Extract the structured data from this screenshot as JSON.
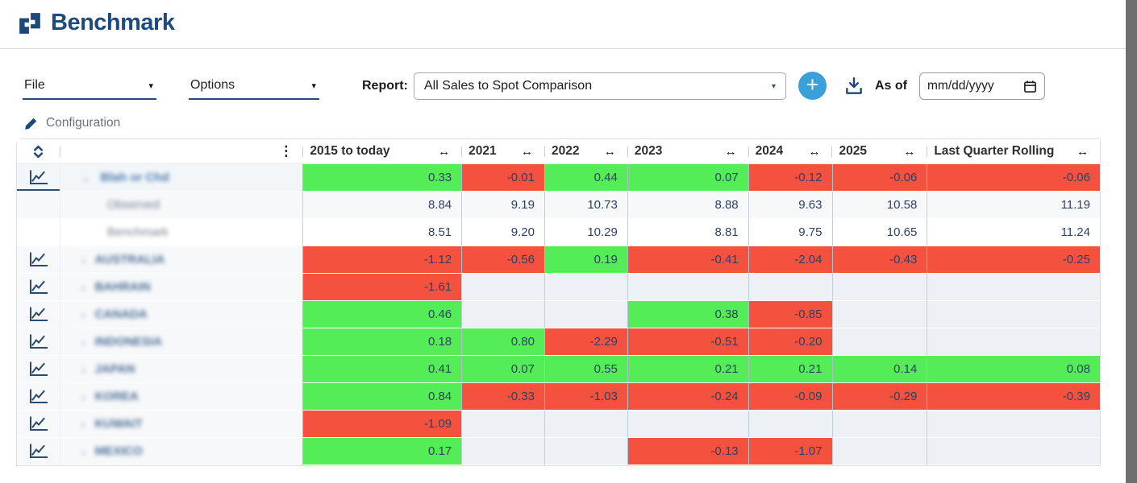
{
  "app": {
    "title": "Benchmark"
  },
  "icons": {
    "caret": "▾",
    "resize": "↔",
    "kebab": "⋮",
    "plus": "+",
    "logo": "puzzle-brackets",
    "sort": "up-down-chevrons",
    "row_chart": "line-chart",
    "config": "pencil",
    "download": "tray-down-arrow",
    "calendar": "calendar"
  },
  "colors": {
    "positive": "#55ed57",
    "negative": "#f4513e",
    "accent_navy": "#1d4879",
    "plus_button_blue": "#39a0da",
    "edge_strip_gray": "#6e6e6e"
  },
  "toolbar": {
    "file_label": "File",
    "options_label": "Options",
    "report_label": "Report:",
    "report_value": "All Sales to Spot Comparison",
    "as_of_label": "As of",
    "date_placeholder": "mm/dd/yyyy"
  },
  "config_link": {
    "label": "Configuration"
  },
  "table": {
    "columns": [
      {
        "label": "2015 to today"
      },
      {
        "label": "2021"
      },
      {
        "label": "2022"
      },
      {
        "label": "2023"
      },
      {
        "label": "2024"
      },
      {
        "label": "2025"
      },
      {
        "label": "Last Quarter Rolling"
      }
    ],
    "rows": [
      {
        "name": "Blah or Chd",
        "blurred": true,
        "chevron": "⌄",
        "icon": true,
        "indent": 1,
        "tone": "parent",
        "cells": [
          {
            "v": "0.33",
            "s": "pos"
          },
          {
            "v": "-0.01",
            "s": "neg"
          },
          {
            "v": "0.44",
            "s": "pos"
          },
          {
            "v": "0.07",
            "s": "pos"
          },
          {
            "v": "-0.12",
            "s": "neg"
          },
          {
            "v": "-0.06",
            "s": "neg"
          },
          {
            "v": "-0.06",
            "s": "neg"
          }
        ]
      },
      {
        "name": "Observed",
        "blurred": true,
        "chevron": "",
        "icon": false,
        "indent": 2,
        "tone": "sub-gray",
        "cells": [
          {
            "v": "8.84",
            "s": "plain"
          },
          {
            "v": "9.19",
            "s": "plain"
          },
          {
            "v": "10.73",
            "s": "plain"
          },
          {
            "v": "8.88",
            "s": "plain"
          },
          {
            "v": "9.63",
            "s": "plain"
          },
          {
            "v": "10.58",
            "s": "plain"
          },
          {
            "v": "11.19",
            "s": "plain"
          }
        ]
      },
      {
        "name": "Benchmark",
        "blurred": true,
        "chevron": "",
        "icon": false,
        "indent": 2,
        "tone": "sub-white",
        "cells": [
          {
            "v": "8.51",
            "s": "plain"
          },
          {
            "v": "9.20",
            "s": "plain"
          },
          {
            "v": "10.29",
            "s": "plain"
          },
          {
            "v": "8.81",
            "s": "plain"
          },
          {
            "v": "9.75",
            "s": "plain"
          },
          {
            "v": "10.65",
            "s": "plain"
          },
          {
            "v": "11.24",
            "s": "plain"
          }
        ]
      },
      {
        "name": "AUSTRALIA",
        "blurred": true,
        "chevron": "›",
        "icon": true,
        "indent": 1,
        "tone": "country",
        "cells": [
          {
            "v": "-1.12",
            "s": "neg"
          },
          {
            "v": "-0.56",
            "s": "neg"
          },
          {
            "v": "0.19",
            "s": "pos"
          },
          {
            "v": "-0.41",
            "s": "neg"
          },
          {
            "v": "-2.04",
            "s": "neg"
          },
          {
            "v": "-0.43",
            "s": "neg"
          },
          {
            "v": "-0.25",
            "s": "neg"
          }
        ]
      },
      {
        "name": "BAHRAIN",
        "blurred": true,
        "chevron": "›",
        "icon": true,
        "indent": 1,
        "tone": "country",
        "cells": [
          {
            "v": "-1.61",
            "s": "neg"
          },
          {
            "v": "",
            "s": "empty"
          },
          {
            "v": "",
            "s": "empty"
          },
          {
            "v": "",
            "s": "empty"
          },
          {
            "v": "",
            "s": "empty"
          },
          {
            "v": "",
            "s": "empty"
          },
          {
            "v": "",
            "s": "empty"
          }
        ]
      },
      {
        "name": "CANADA",
        "blurred": true,
        "chevron": "›",
        "icon": true,
        "indent": 1,
        "tone": "country",
        "cells": [
          {
            "v": "0.46",
            "s": "pos"
          },
          {
            "v": "",
            "s": "empty"
          },
          {
            "v": "",
            "s": "empty"
          },
          {
            "v": "0.38",
            "s": "pos"
          },
          {
            "v": "-0.85",
            "s": "neg"
          },
          {
            "v": "",
            "s": "empty"
          },
          {
            "v": "",
            "s": "empty"
          }
        ]
      },
      {
        "name": "INDONESIA",
        "blurred": true,
        "chevron": "›",
        "icon": true,
        "indent": 1,
        "tone": "country",
        "cells": [
          {
            "v": "0.18",
            "s": "pos"
          },
          {
            "v": "0.80",
            "s": "pos"
          },
          {
            "v": "-2.29",
            "s": "neg"
          },
          {
            "v": "-0.51",
            "s": "neg"
          },
          {
            "v": "-0.20",
            "s": "neg"
          },
          {
            "v": "",
            "s": "empty"
          },
          {
            "v": "",
            "s": "empty"
          }
        ]
      },
      {
        "name": "JAPAN",
        "blurred": true,
        "chevron": "›",
        "icon": true,
        "indent": 1,
        "tone": "country",
        "cells": [
          {
            "v": "0.41",
            "s": "pos"
          },
          {
            "v": "0.07",
            "s": "pos"
          },
          {
            "v": "0.55",
            "s": "pos"
          },
          {
            "v": "0.21",
            "s": "pos"
          },
          {
            "v": "0.21",
            "s": "pos"
          },
          {
            "v": "0.14",
            "s": "pos"
          },
          {
            "v": "0.08",
            "s": "pos"
          }
        ]
      },
      {
        "name": "KOREA",
        "blurred": true,
        "chevron": "›",
        "icon": true,
        "indent": 1,
        "tone": "country",
        "cells": [
          {
            "v": "0.84",
            "s": "pos"
          },
          {
            "v": "-0.33",
            "s": "neg"
          },
          {
            "v": "-1.03",
            "s": "neg"
          },
          {
            "v": "-0.24",
            "s": "neg"
          },
          {
            "v": "-0.09",
            "s": "neg"
          },
          {
            "v": "-0.29",
            "s": "neg"
          },
          {
            "v": "-0.39",
            "s": "neg"
          }
        ]
      },
      {
        "name": "KUWAIT",
        "blurred": true,
        "chevron": "›",
        "icon": true,
        "indent": 1,
        "tone": "country",
        "cells": [
          {
            "v": "-1.09",
            "s": "neg"
          },
          {
            "v": "",
            "s": "empty"
          },
          {
            "v": "",
            "s": "empty"
          },
          {
            "v": "",
            "s": "empty"
          },
          {
            "v": "",
            "s": "empty"
          },
          {
            "v": "",
            "s": "empty"
          },
          {
            "v": "",
            "s": "empty"
          }
        ]
      },
      {
        "name": "MEXICO",
        "blurred": true,
        "chevron": "›",
        "icon": true,
        "indent": 1,
        "tone": "country",
        "cells": [
          {
            "v": "0.17",
            "s": "pos"
          },
          {
            "v": "",
            "s": "empty"
          },
          {
            "v": "",
            "s": "empty"
          },
          {
            "v": "-0.13",
            "s": "neg"
          },
          {
            "v": "-1.07",
            "s": "neg"
          },
          {
            "v": "",
            "s": "empty"
          },
          {
            "v": "",
            "s": "empty"
          }
        ]
      }
    ]
  }
}
